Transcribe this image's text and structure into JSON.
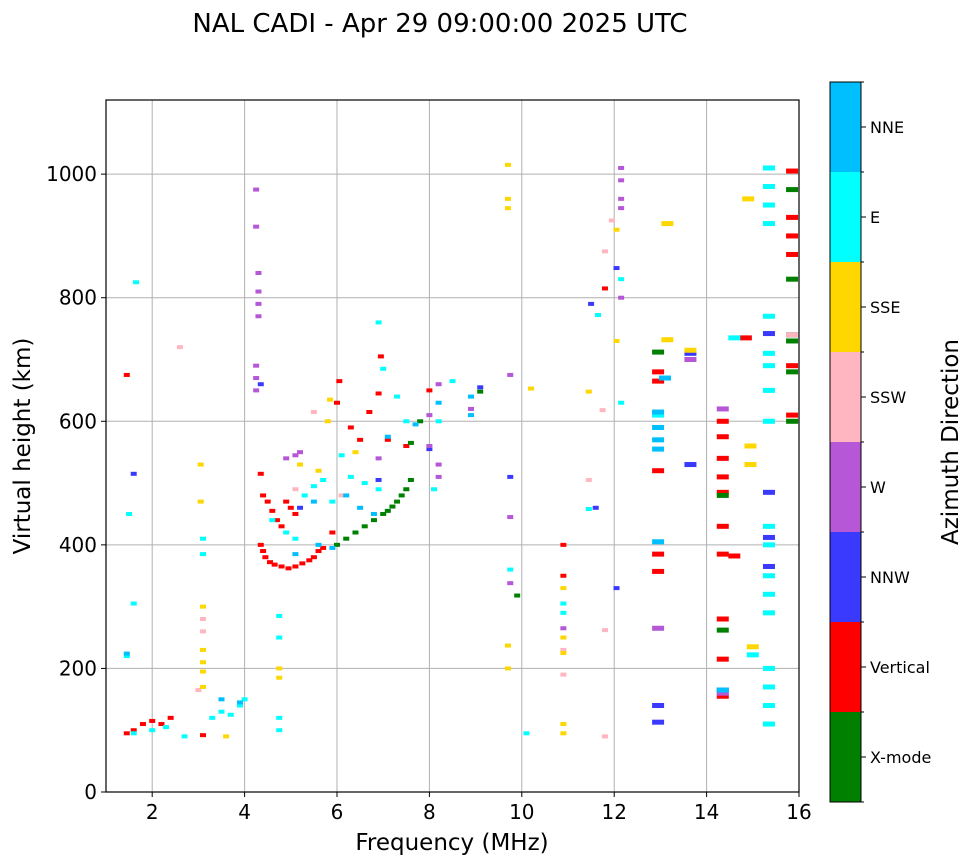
{
  "chart_data": {
    "type": "scatter",
    "title": "NAL CADI - Apr 29 09:00:00 2025 UTC",
    "xlabel": "Frequency (MHz)",
    "ylabel": "Virtual height (km)",
    "xlim": [
      1.0,
      16.0
    ],
    "ylim": [
      0,
      1120
    ],
    "xticks": [
      2,
      4,
      6,
      8,
      10,
      12,
      14,
      16
    ],
    "yticks": [
      0,
      200,
      400,
      600,
      800,
      1000
    ],
    "grid": true,
    "colorbar": {
      "label": "Azimuth Direction",
      "categories": [
        {
          "name": "X-mode",
          "color": "#008000"
        },
        {
          "name": "Vertical",
          "color": "#ff0000"
        },
        {
          "name": "NNW",
          "color": "#3a3aff"
        },
        {
          "name": "W",
          "color": "#b557d6"
        },
        {
          "name": "SSW",
          "color": "#ffb6c1"
        },
        {
          "name": "SSE",
          "color": "#ffd700"
        },
        {
          "name": "E",
          "color": "#00ffff"
        },
        {
          "name": "NNE",
          "color": "#00bfff"
        }
      ]
    },
    "series": [
      {
        "name": "Vertical",
        "points": [
          [
            1.45,
            675
          ],
          [
            1.45,
            95
          ],
          [
            1.6,
            100
          ],
          [
            1.8,
            110
          ],
          [
            2.0,
            115
          ],
          [
            2.2,
            110
          ],
          [
            2.4,
            120
          ],
          [
            3.1,
            92
          ],
          [
            4.35,
            515
          ],
          [
            4.4,
            480
          ],
          [
            4.5,
            470
          ],
          [
            4.6,
            455
          ],
          [
            4.7,
            440
          ],
          [
            4.8,
            430
          ],
          [
            4.9,
            470
          ],
          [
            5.0,
            460
          ],
          [
            5.1,
            450
          ],
          [
            4.35,
            400
          ],
          [
            4.4,
            390
          ],
          [
            4.45,
            380
          ],
          [
            4.55,
            372
          ],
          [
            4.65,
            368
          ],
          [
            4.8,
            365
          ],
          [
            4.95,
            362
          ],
          [
            5.1,
            365
          ],
          [
            5.25,
            370
          ],
          [
            5.4,
            375
          ],
          [
            5.5,
            380
          ],
          [
            5.6,
            390
          ],
          [
            5.7,
            395
          ],
          [
            5.9,
            420
          ],
          [
            6.0,
            630
          ],
          [
            6.05,
            665
          ],
          [
            6.3,
            590
          ],
          [
            6.5,
            570
          ],
          [
            6.7,
            615
          ],
          [
            6.9,
            645
          ],
          [
            6.95,
            705
          ],
          [
            7.1,
            570
          ],
          [
            7.5,
            560
          ],
          [
            8.0,
            650
          ],
          [
            10.9,
            400
          ],
          [
            10.9,
            350
          ],
          [
            11.8,
            815
          ],
          [
            12.95,
            680
          ],
          [
            12.95,
            665
          ],
          [
            12.95,
            520
          ],
          [
            12.95,
            385
          ],
          [
            12.95,
            357
          ],
          [
            14.35,
            600
          ],
          [
            14.35,
            575
          ],
          [
            14.35,
            540
          ],
          [
            14.35,
            510
          ],
          [
            14.35,
            485
          ],
          [
            14.35,
            430
          ],
          [
            14.35,
            385
          ],
          [
            14.35,
            280
          ],
          [
            14.35,
            215
          ],
          [
            14.35,
            155
          ],
          [
            14.6,
            382
          ],
          [
            14.85,
            735
          ],
          [
            15.85,
            1005
          ],
          [
            15.85,
            930
          ],
          [
            15.85,
            900
          ],
          [
            15.85,
            870
          ],
          [
            15.85,
            690
          ],
          [
            15.85,
            610
          ]
        ]
      },
      {
        "name": "X-mode",
        "points": [
          [
            6.0,
            400
          ],
          [
            6.2,
            410
          ],
          [
            6.4,
            420
          ],
          [
            6.6,
            430
          ],
          [
            6.8,
            440
          ],
          [
            7.0,
            450
          ],
          [
            7.1,
            455
          ],
          [
            7.2,
            462
          ],
          [
            7.3,
            470
          ],
          [
            7.4,
            480
          ],
          [
            7.5,
            490
          ],
          [
            7.6,
            505
          ],
          [
            7.6,
            565
          ],
          [
            7.8,
            600
          ],
          [
            9.1,
            648
          ],
          [
            9.9,
            318
          ],
          [
            12.95,
            712
          ],
          [
            14.35,
            480
          ],
          [
            14.35,
            262
          ],
          [
            15.85,
            975
          ],
          [
            15.85,
            830
          ],
          [
            15.85,
            740
          ],
          [
            15.85,
            730
          ],
          [
            15.85,
            680
          ],
          [
            15.85,
            600
          ]
        ]
      },
      {
        "name": "NNW",
        "points": [
          [
            1.6,
            515
          ],
          [
            4.35,
            660
          ],
          [
            5.2,
            460
          ],
          [
            6.9,
            505
          ],
          [
            8.0,
            555
          ],
          [
            9.1,
            655
          ],
          [
            9.75,
            510
          ],
          [
            11.6,
            460
          ],
          [
            11.5,
            790
          ],
          [
            12.05,
            330
          ],
          [
            12.05,
            848
          ],
          [
            13.65,
            530
          ],
          [
            13.65,
            710
          ],
          [
            14.35,
            165
          ],
          [
            15.35,
            742
          ],
          [
            15.35,
            412
          ],
          [
            15.35,
            485
          ],
          [
            15.35,
            365
          ],
          [
            12.95,
            140
          ],
          [
            12.95,
            113
          ]
        ]
      },
      {
        "name": "W",
        "points": [
          [
            4.25,
            975
          ],
          [
            4.25,
            915
          ],
          [
            4.3,
            840
          ],
          [
            4.3,
            810
          ],
          [
            4.3,
            790
          ],
          [
            4.3,
            770
          ],
          [
            4.25,
            690
          ],
          [
            4.25,
            670
          ],
          [
            4.25,
            650
          ],
          [
            4.9,
            540
          ],
          [
            5.1,
            545
          ],
          [
            5.2,
            550
          ],
          [
            6.9,
            540
          ],
          [
            8.0,
            560
          ],
          [
            8.2,
            530
          ],
          [
            8.2,
            510
          ],
          [
            8.0,
            610
          ],
          [
            8.2,
            660
          ],
          [
            8.9,
            620
          ],
          [
            9.75,
            675
          ],
          [
            9.75,
            445
          ],
          [
            9.75,
            338
          ],
          [
            12.15,
            1010
          ],
          [
            12.15,
            990
          ],
          [
            12.15,
            960
          ],
          [
            12.15,
            945
          ],
          [
            12.15,
            800
          ],
          [
            12.95,
            265
          ],
          [
            13.65,
            700
          ],
          [
            14.35,
            620
          ],
          [
            14.35,
            160
          ],
          [
            10.9,
            265
          ]
        ]
      },
      {
        "name": "SSW",
        "points": [
          [
            3.1,
            280
          ],
          [
            3.1,
            260
          ],
          [
            3.0,
            165
          ],
          [
            2.6,
            720
          ],
          [
            5.5,
            615
          ],
          [
            5.1,
            490
          ],
          [
            6.1,
            480
          ],
          [
            10.9,
            230
          ],
          [
            10.9,
            190
          ],
          [
            11.45,
            505
          ],
          [
            11.75,
            618
          ],
          [
            11.8,
            262
          ],
          [
            11.8,
            90
          ],
          [
            11.8,
            875
          ],
          [
            11.95,
            925
          ],
          [
            15.85,
            740
          ]
        ]
      },
      {
        "name": "SSE",
        "points": [
          [
            3.05,
            530
          ],
          [
            3.05,
            470
          ],
          [
            3.1,
            300
          ],
          [
            3.1,
            230
          ],
          [
            3.1,
            210
          ],
          [
            3.1,
            195
          ],
          [
            3.1,
            170
          ],
          [
            4.75,
            200
          ],
          [
            4.75,
            185
          ],
          [
            5.2,
            530
          ],
          [
            5.6,
            520
          ],
          [
            5.8,
            600
          ],
          [
            5.85,
            635
          ],
          [
            6.4,
            550
          ],
          [
            9.7,
            1015
          ],
          [
            9.7,
            960
          ],
          [
            9.7,
            945
          ],
          [
            9.7,
            237
          ],
          [
            9.7,
            200
          ],
          [
            10.2,
            653
          ],
          [
            10.9,
            250
          ],
          [
            10.9,
            225
          ],
          [
            10.9,
            110
          ],
          [
            10.9,
            95
          ],
          [
            10.9,
            330
          ],
          [
            11.45,
            648
          ],
          [
            12.05,
            910
          ],
          [
            12.05,
            730
          ],
          [
            13.15,
            920
          ],
          [
            13.15,
            732
          ],
          [
            13.65,
            715
          ],
          [
            14.9,
            960
          ],
          [
            14.95,
            560
          ],
          [
            14.95,
            530
          ],
          [
            15.0,
            235
          ],
          [
            3.6,
            90
          ]
        ]
      },
      {
        "name": "E",
        "points": [
          [
            1.5,
            450
          ],
          [
            1.6,
            305
          ],
          [
            1.45,
            220
          ],
          [
            1.65,
            825
          ],
          [
            1.6,
            95
          ],
          [
            2.0,
            100
          ],
          [
            2.3,
            105
          ],
          [
            2.7,
            90
          ],
          [
            3.1,
            385
          ],
          [
            3.1,
            410
          ],
          [
            3.3,
            120
          ],
          [
            3.5,
            130
          ],
          [
            3.7,
            125
          ],
          [
            3.9,
            140
          ],
          [
            4.0,
            150
          ],
          [
            4.75,
            120
          ],
          [
            4.75,
            100
          ],
          [
            4.75,
            250
          ],
          [
            4.75,
            285
          ],
          [
            4.6,
            440
          ],
          [
            4.9,
            420
          ],
          [
            5.1,
            410
          ],
          [
            5.3,
            480
          ],
          [
            5.5,
            495
          ],
          [
            5.7,
            505
          ],
          [
            5.9,
            470
          ],
          [
            6.1,
            545
          ],
          [
            6.3,
            510
          ],
          [
            6.6,
            500
          ],
          [
            6.9,
            490
          ],
          [
            7.0,
            685
          ],
          [
            6.9,
            760
          ],
          [
            7.3,
            640
          ],
          [
            7.5,
            600
          ],
          [
            8.1,
            490
          ],
          [
            8.2,
            600
          ],
          [
            8.5,
            665
          ],
          [
            9.75,
            360
          ],
          [
            10.1,
            95
          ],
          [
            10.9,
            305
          ],
          [
            10.9,
            290
          ],
          [
            11.45,
            458
          ],
          [
            11.65,
            772
          ],
          [
            12.15,
            630
          ],
          [
            12.15,
            830
          ],
          [
            12.95,
            610
          ],
          [
            15.35,
            1010
          ],
          [
            15.35,
            980
          ],
          [
            15.35,
            950
          ],
          [
            15.35,
            920
          ],
          [
            15.35,
            770
          ],
          [
            15.35,
            710
          ],
          [
            15.35,
            690
          ],
          [
            15.35,
            650
          ],
          [
            15.35,
            600
          ],
          [
            15.35,
            430
          ],
          [
            15.35,
            400
          ],
          [
            15.35,
            350
          ],
          [
            15.35,
            320
          ],
          [
            15.35,
            290
          ],
          [
            15.35,
            200
          ],
          [
            15.35,
            170
          ],
          [
            15.35,
            140
          ],
          [
            15.35,
            110
          ],
          [
            15.0,
            222
          ],
          [
            14.6,
            735
          ]
        ]
      },
      {
        "name": "NNE",
        "points": [
          [
            1.45,
            224
          ],
          [
            3.5,
            150
          ],
          [
            3.9,
            145
          ],
          [
            5.1,
            385
          ],
          [
            5.5,
            470
          ],
          [
            5.6,
            400
          ],
          [
            5.9,
            395
          ],
          [
            6.2,
            480
          ],
          [
            6.5,
            460
          ],
          [
            6.8,
            450
          ],
          [
            7.1,
            575
          ],
          [
            7.7,
            595
          ],
          [
            8.2,
            630
          ],
          [
            8.9,
            610
          ],
          [
            8.9,
            640
          ],
          [
            12.95,
            615
          ],
          [
            12.95,
            590
          ],
          [
            12.95,
            570
          ],
          [
            12.95,
            555
          ],
          [
            12.95,
            405
          ],
          [
            13.1,
            670
          ],
          [
            14.35,
            165
          ]
        ]
      }
    ]
  }
}
